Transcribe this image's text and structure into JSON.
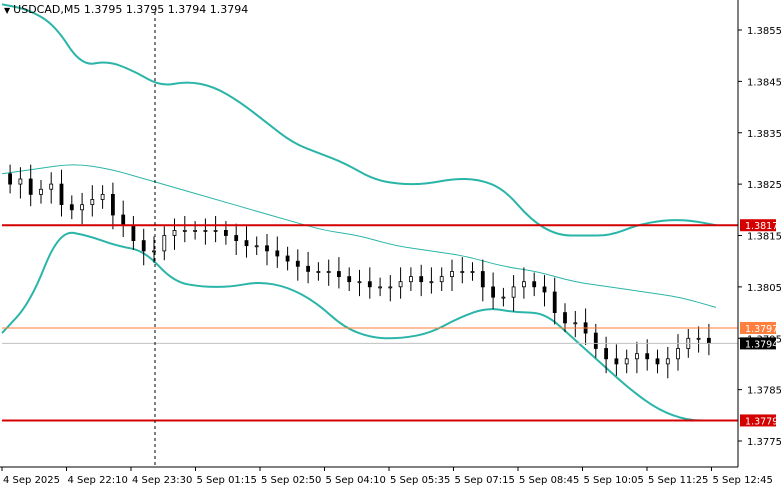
{
  "header": {
    "symbol": "USDCAD,M5",
    "ohlc": "1.3795 1.3795 1.3794 1.3794"
  },
  "colors": {
    "background": "#ffffff",
    "candles": "#000000",
    "bollinger": "#2ab5a8",
    "moving_average": "#2ab5a8",
    "support_resistance": "#d40000",
    "thin_level": "#ff7f3f",
    "current_price_label": "#000000"
  },
  "price_axis": {
    "ticks": [
      "1.3855",
      "1.3845",
      "1.3835",
      "1.3825",
      "1.3815",
      "1.3805",
      "1.3795",
      "1.3785",
      "1.3775"
    ],
    "tick_values": [
      1.3855,
      1.3845,
      1.3835,
      1.3825,
      1.3815,
      1.3805,
      1.3795,
      1.3785,
      1.3775
    ]
  },
  "time_axis": {
    "labels": [
      "4 Sep 2025",
      "4 Sep 22:10",
      "4 Sep 23:30",
      "5 Sep 01:15",
      "5 Sep 02:50",
      "5 Sep 04:10",
      "5 Sep 05:35",
      "5 Sep 07:15",
      "5 Sep 08:45",
      "5 Sep 10:05",
      "5 Sep 11:25",
      "5 Sep 12:45"
    ]
  },
  "levels": [
    {
      "name": "resistance",
      "price": 1.3817,
      "label": "1.3817",
      "style": "thick-red"
    },
    {
      "name": "level-thin",
      "price": 1.3797,
      "label": "1.3797",
      "style": "thin-orange"
    },
    {
      "name": "support",
      "price": 1.3779,
      "label": "1.3779",
      "style": "thick-red"
    }
  ],
  "current_price": {
    "price": 1.3794,
    "label": "1.3794"
  },
  "chart_data": {
    "type": "candlestick",
    "symbol": "USDCAD",
    "timeframe": "M5",
    "ylim": [
      1.3771,
      1.3862
    ],
    "candle_closes": [
      1.3825,
      1.3826,
      1.3823,
      1.3824,
      1.3825,
      1.3821,
      1.382,
      1.3821,
      1.3822,
      1.3823,
      1.3819,
      1.3817,
      1.3814,
      1.3812,
      1.3812,
      1.3815,
      1.3816,
      1.3816,
      1.3816,
      1.3816,
      1.3816,
      1.3815,
      1.3814,
      1.3813,
      1.3813,
      1.3812,
      1.3811,
      1.381,
      1.3809,
      1.3808,
      1.3808,
      1.3808,
      1.3807,
      1.3806,
      1.3806,
      1.3805,
      1.3805,
      1.3805,
      1.3806,
      1.3807,
      1.3806,
      1.3806,
      1.3807,
      1.3808,
      1.3808,
      1.3808,
      1.3805,
      1.3803,
      1.3803,
      1.3805,
      1.3806,
      1.3805,
      1.3804,
      1.38,
      1.3798,
      1.3798,
      1.3796,
      1.3793,
      1.3791,
      1.379,
      1.3791,
      1.3792,
      1.3791,
      1.379,
      1.3791,
      1.3793,
      1.3795,
      1.3795,
      1.3794
    ],
    "bollinger_upper": [
      1.386,
      1.3859,
      1.3856,
      1.3848,
      1.3849,
      1.3847,
      1.3844,
      1.3845,
      1.3844,
      1.3841,
      1.3837,
      1.3833,
      1.3831,
      1.3829,
      1.3826,
      1.3825,
      1.3825,
      1.3826,
      1.3826,
      1.3824,
      1.3818,
      1.3815,
      1.3815,
      1.3815,
      1.3817,
      1.3818,
      1.3818,
      1.3817
    ],
    "bollinger_middle": [
      1.3827,
      1.3828,
      1.3829,
      1.3828,
      1.3826,
      1.3824,
      1.3822,
      1.382,
      1.3818,
      1.3816,
      1.3815,
      1.3813,
      1.3812,
      1.3811,
      1.3809,
      1.3808,
      1.3806,
      1.3805,
      1.3804,
      1.3803,
      1.3801
    ],
    "bollinger_lower": [
      1.3796,
      1.3802,
      1.3816,
      1.3815,
      1.3813,
      1.3812,
      1.3806,
      1.3805,
      1.3805,
      1.3806,
      1.3805,
      1.3802,
      1.3797,
      1.3795,
      1.3795,
      1.3796,
      1.3799,
      1.3801,
      1.38,
      1.38,
      1.3795,
      1.379,
      1.3785,
      1.3781,
      1.3779,
      1.3779
    ]
  }
}
